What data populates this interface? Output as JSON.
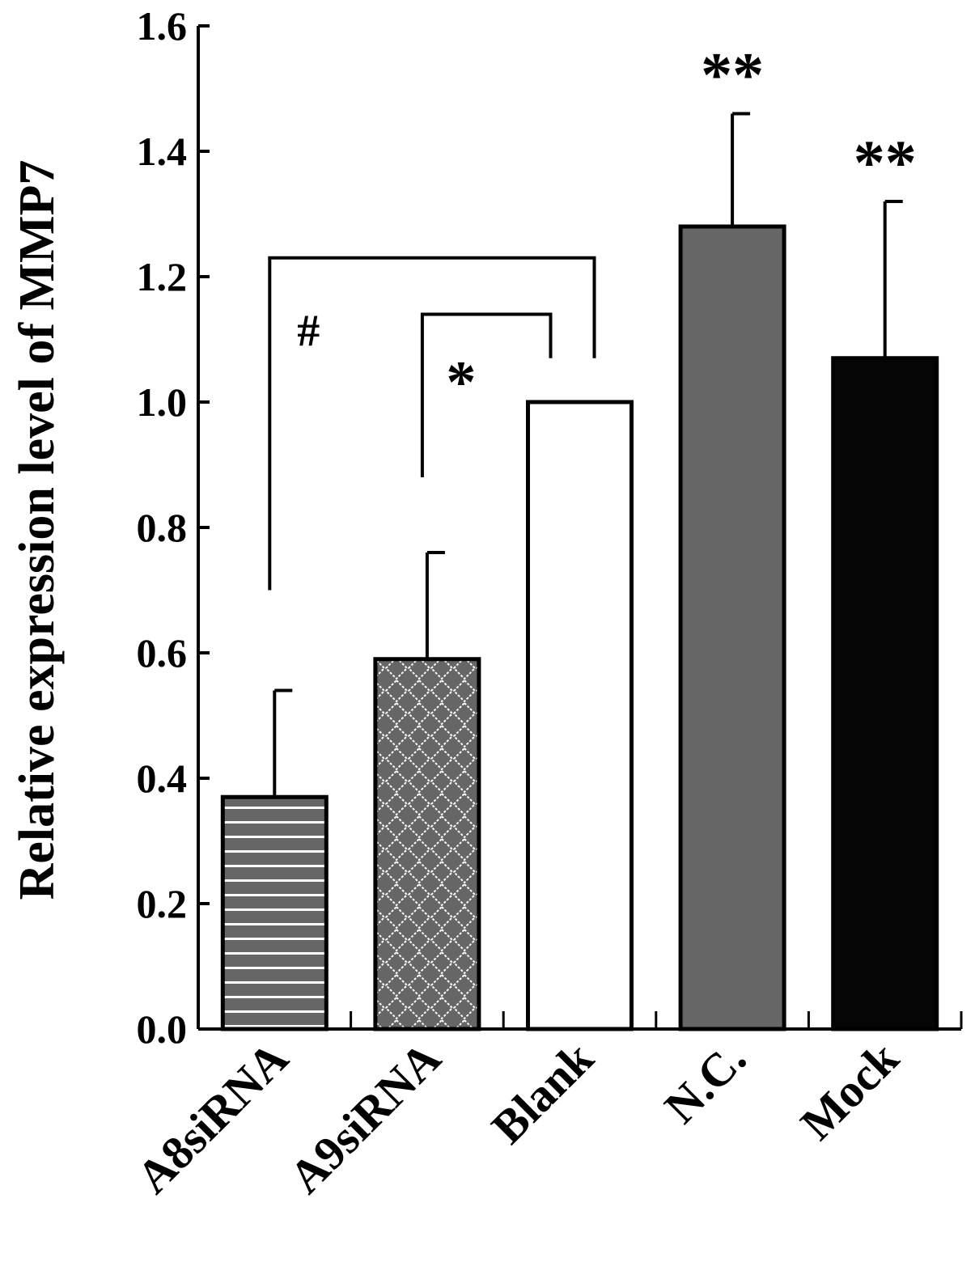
{
  "chart_data": {
    "type": "bar",
    "title": "",
    "xlabel": "",
    "ylabel": "Relative expression level of MMP7",
    "ylim": [
      0,
      1.6
    ],
    "yticks": [
      "0.0",
      "0.2",
      "0.4",
      "0.6",
      "0.8",
      "1.0",
      "1.2",
      "1.4",
      "1.6"
    ],
    "categories": [
      "A8siRNA",
      "A9siRNA",
      "Blank",
      "N.C.",
      "Mock"
    ],
    "values": [
      0.37,
      0.59,
      1.0,
      1.28,
      1.07
    ],
    "errors": [
      0.17,
      0.17,
      0,
      0.18,
      0.25
    ],
    "bar_styles": [
      {
        "fill": "#666666",
        "pattern": "horizontal-stripes"
      },
      {
        "fill": "#666666",
        "pattern": "diamond-lattice"
      },
      {
        "fill": "#ffffff",
        "pattern": "none"
      },
      {
        "fill": "#666666",
        "pattern": "none"
      },
      {
        "fill": "#050505",
        "pattern": "none"
      }
    ],
    "annotations": [
      {
        "category": "N.C.",
        "text": "**"
      },
      {
        "category": "Mock",
        "text": "**"
      }
    ],
    "brackets": [
      {
        "from": "A8siRNA",
        "to": "Blank",
        "text": "#"
      },
      {
        "from": "A9siRNA",
        "to": "Blank",
        "text": "*"
      }
    ],
    "grid": false,
    "legend": "none"
  }
}
